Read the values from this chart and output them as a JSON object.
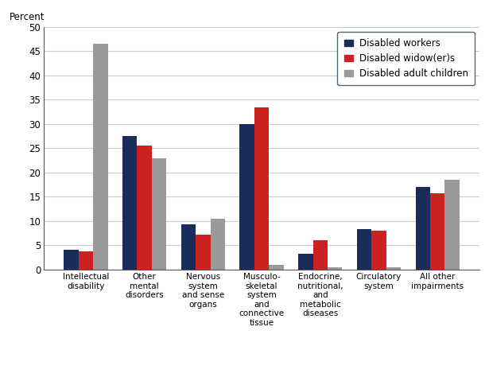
{
  "categories": [
    "Intellectual\ndisability",
    "Other\nmental\ndisorders",
    "Nervous\nsystem\nand sense\norgans",
    "Musculo-\nskeletal\nsystem\nand\nconnective\ntissue",
    "Endocrine,\nnutritional,\nand\nmetabolic\ndiseases",
    "Circulatory\nsystem",
    "All other\nimpairments"
  ],
  "disabled_workers": [
    4.1,
    27.5,
    9.3,
    30.0,
    3.3,
    8.3,
    17.0
  ],
  "disabled_widowers": [
    3.8,
    25.5,
    7.2,
    33.5,
    6.0,
    8.0,
    15.7
  ],
  "disabled_adult_children": [
    46.5,
    23.0,
    10.5,
    1.0,
    0.5,
    0.5,
    18.5
  ],
  "colors": {
    "workers": "#1a2d5a",
    "widowers": "#cc2222",
    "adult_children": "#9a9a9a"
  },
  "legend_labels": [
    "Disabled workers",
    "Disabled widow(er)s",
    "Disabled adult children"
  ],
  "percent_label": "Percent",
  "ylim": [
    0,
    50
  ],
  "yticks": [
    0,
    5,
    10,
    15,
    20,
    25,
    30,
    35,
    40,
    45,
    50
  ],
  "bar_width": 0.25,
  "grid_color": "#cccccc",
  "bg_color": "#ffffff",
  "border_color": "#555555"
}
